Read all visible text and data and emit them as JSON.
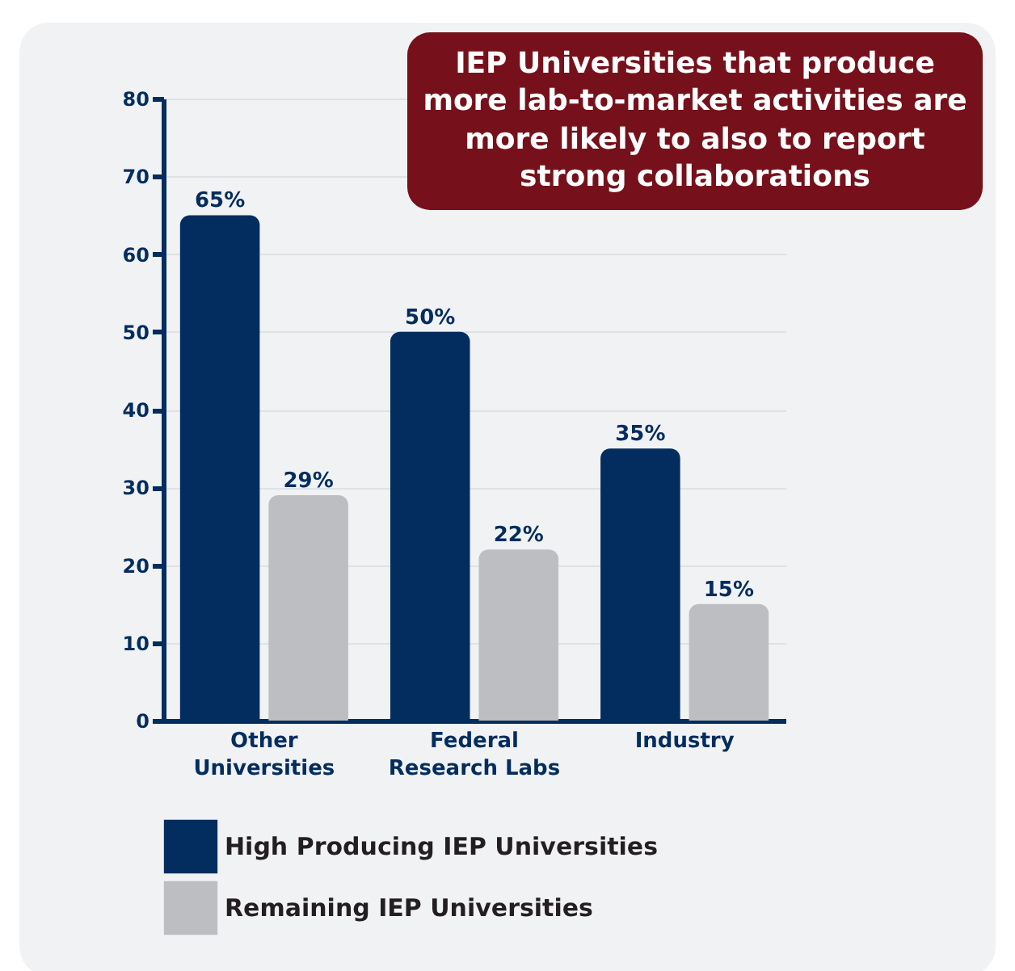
{
  "chart_data": {
    "type": "bar",
    "categories": [
      "Other Universities",
      "Federal Research Labs",
      "Industry"
    ],
    "series": [
      {
        "name": "High Producing IEP Universities",
        "color": "#022d5e",
        "values": [
          65,
          50,
          35
        ],
        "value_labels": [
          "65%",
          "50%",
          "35%"
        ]
      },
      {
        "name": "Remaining IEP Universities",
        "color": "#bcbec1",
        "values": [
          29,
          22,
          15
        ],
        "value_labels": [
          "29%",
          "22%",
          "15%"
        ]
      }
    ],
    "ylim": [
      0,
      80
    ],
    "yticks": [
      0,
      10,
      20,
      30,
      40,
      50,
      60,
      70,
      80
    ],
    "grid": "y",
    "legend": "bottom",
    "annotations": [
      "IEP Universities that produce more lab-to-market activities are more likely to also to report strong collaborations"
    ]
  }
}
